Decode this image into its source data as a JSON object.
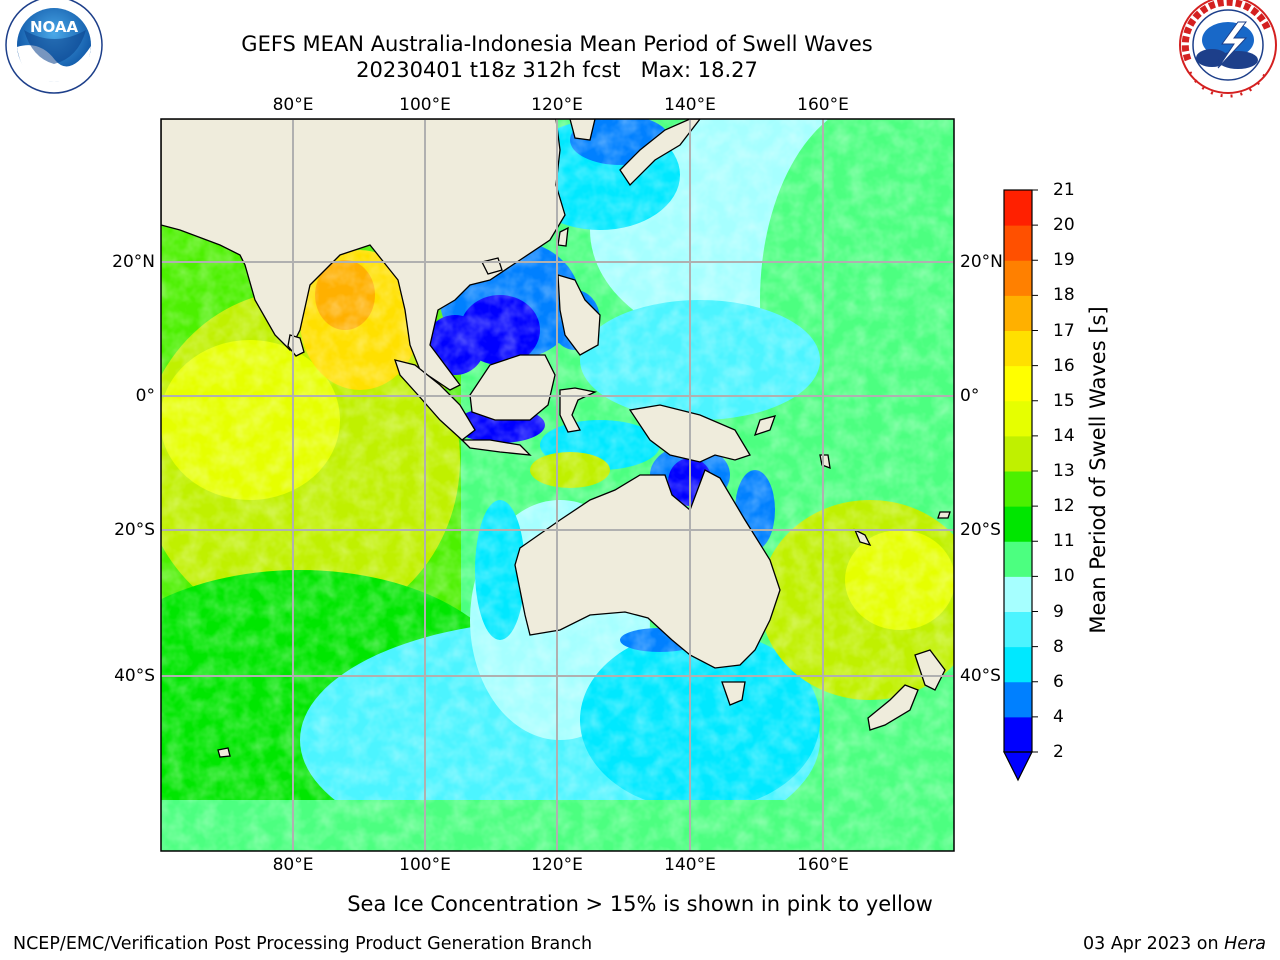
{
  "header": {
    "title_line1": "GEFS MEAN Australia-Indonesia Mean Period of Swell Waves",
    "title_line2": "20230401 t18z 312h fcst   Max: 18.27"
  },
  "logos": {
    "left": "noaa-logo",
    "right": "national-weather-service-logo"
  },
  "map": {
    "lon_ticks": [
      "80°E",
      "100°E",
      "120°E",
      "140°E",
      "160°E"
    ],
    "lat_ticks": [
      "20°N",
      "0°",
      "20°S",
      "40°S"
    ],
    "land_color": "#efecdc",
    "grid_color": "#b0b0b0"
  },
  "colorbar": {
    "label": "Mean Period of Swell Waves [s]",
    "ticks": [
      "2",
      "4",
      "6",
      "8",
      "9",
      "10",
      "11",
      "12",
      "13",
      "14",
      "15",
      "16",
      "17",
      "18",
      "19",
      "20",
      "21"
    ],
    "colors": [
      "#0000ff",
      "#0080ff",
      "#00e8ff",
      "#4cf4ff",
      "#a6ffff",
      "#4cff80",
      "#00e600",
      "#4cf000",
      "#c0f000",
      "#e6ff00",
      "#ffff00",
      "#ffe000",
      "#ffb000",
      "#ff8000",
      "#ff5000",
      "#ff2000"
    ],
    "extend_color": "#0000ff"
  },
  "note": "Sea Ice Concentration > 15% is shown in pink to yellow",
  "footer": {
    "left": "NCEP/EMC/Verification Post Processing Product Generation Branch",
    "date": "03 Apr 2023 on ",
    "machine": "Hera"
  }
}
